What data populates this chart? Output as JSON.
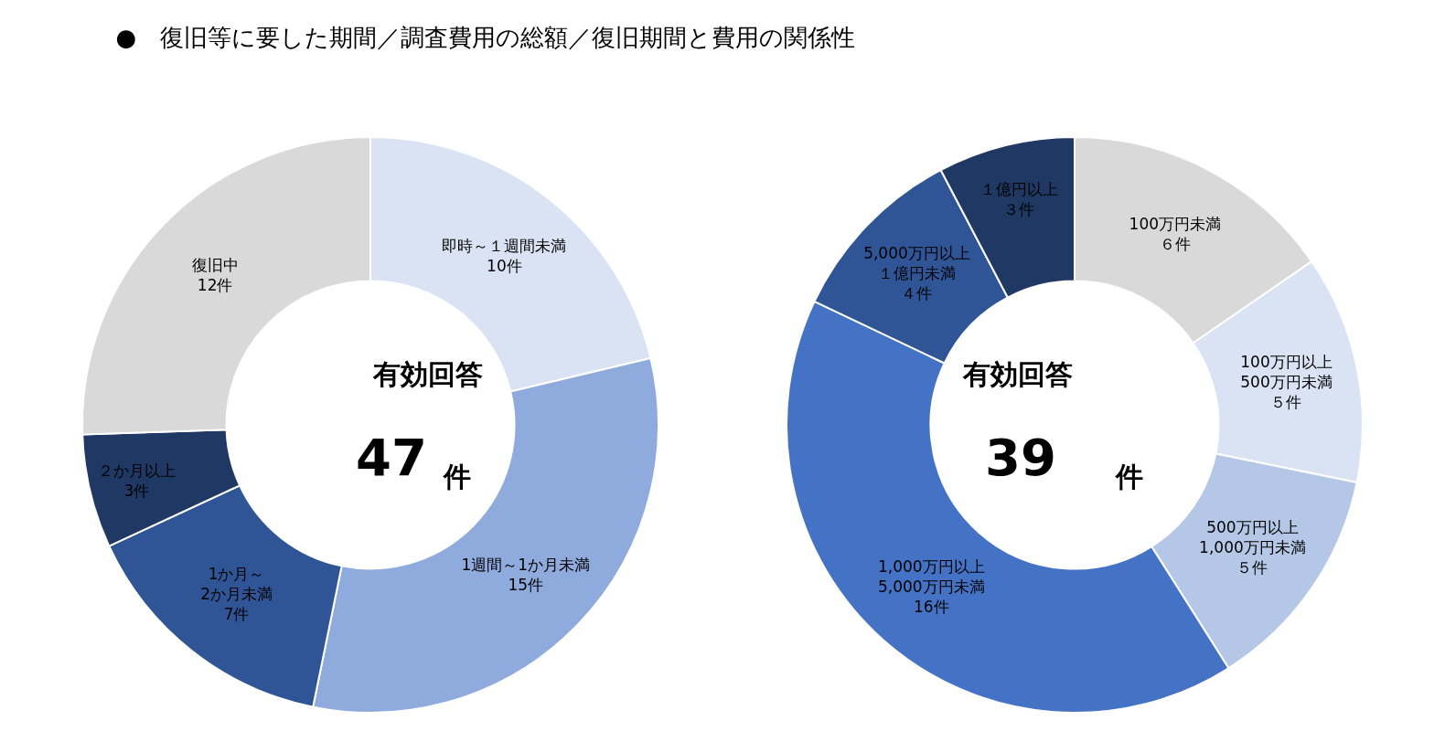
{
  "chart_data": [
    {
      "type": "donut",
      "title": "●　復旧等に要した期間／調査費用の総額／復旧期間と費用の関係性",
      "categories": [
        "即時～１週間未満",
        "1週間～1か月未満",
        "1か月～\n2か月未満",
        "２か月以上",
        "復旧中"
      ],
      "values": [
        10,
        15,
        7,
        3,
        12
      ],
      "value_labels": [
        "10件",
        "15件",
        "7件",
        "3件",
        "12件"
      ],
      "colors": [
        "#dae3f3",
        "#8faadc",
        "#2f5597",
        "#203864",
        "#d9d9d9"
      ],
      "annotations": [
        "有効回答",
        "47",
        "件"
      ]
    },
    {
      "type": "donut",
      "categories": [
        "100万円未満",
        "100万円以上\n500万円未満",
        "500万円以上\n1,000万円未満",
        "1,000万円以上\n5,000万円未満",
        "5,000万円以上１億円未満",
        "１億円以上"
      ],
      "values": [
        6,
        5,
        5,
        16,
        4,
        3
      ],
      "value_labels": [
        "６件",
        "５件",
        "５件",
        "16件",
        "４件",
        "３件"
      ],
      "colors": [
        "#d9d9d9",
        "#dae3f3",
        "#b4c7e7",
        "#4472c4",
        "#2f5597",
        "#203864"
      ],
      "annotations": [
        "有効回答",
        "39",
        "件"
      ]
    }
  ]
}
